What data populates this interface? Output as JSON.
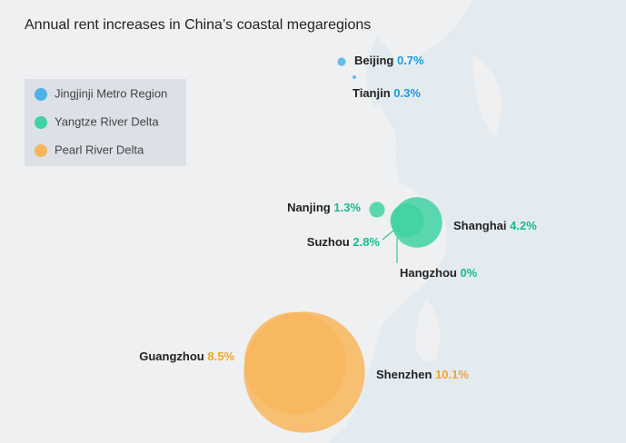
{
  "chart_data": {
    "type": "bubble",
    "title": "Annual rent increases in China’s coastal megaregions",
    "series": [
      {
        "name": "Jingjinji Metro Region",
        "color": "#4db3e6",
        "label_color": "#1a9be0",
        "categories": [
          "Beijing",
          "Tianjin"
        ],
        "values": [
          0.7,
          0.3
        ],
        "value_labels": [
          "0.7%",
          "0.3%"
        ]
      },
      {
        "name": "Yangtze River Delta",
        "color": "#3fd2a2",
        "label_color": "#16bd87",
        "categories": [
          "Nanjing",
          "Suzhou",
          "Shanghai",
          "Hangzhou"
        ],
        "values": [
          1.3,
          2.8,
          4.2,
          0
        ],
        "value_labels": [
          "1.3%",
          "2.8%",
          "4.2%",
          "0%"
        ]
      },
      {
        "name": "Pearl River Delta",
        "color": "#f8b65c",
        "label_color": "#f3a52c",
        "categories": [
          "Guangzhou",
          "Shenzhen"
        ],
        "values": [
          8.5,
          10.1
        ],
        "value_labels": [
          "8.5%",
          "10.1%"
        ]
      }
    ]
  }
}
